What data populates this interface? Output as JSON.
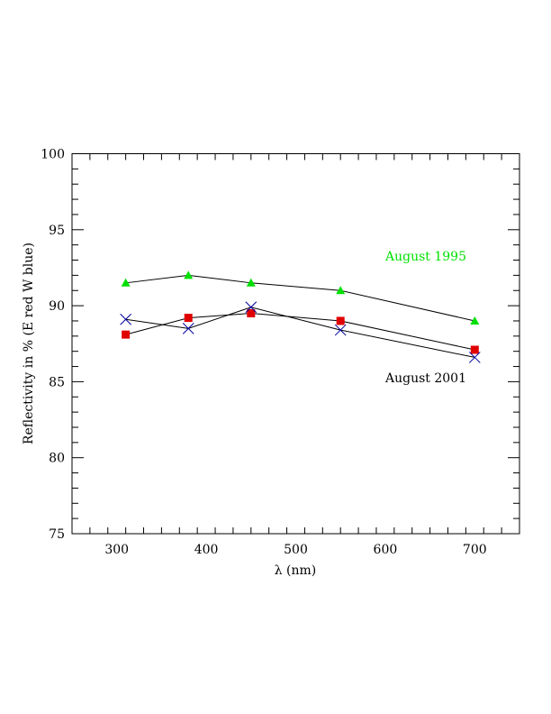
{
  "chart_data": {
    "type": "line",
    "title": "",
    "xlabel": "λ (nm)",
    "ylabel": "Reflectivity in % (E red W blue)",
    "xlim": [
      250,
      750
    ],
    "ylim": [
      75,
      100
    ],
    "x_major_ticks": [
      300,
      400,
      500,
      600,
      700
    ],
    "x_tick_labels": [
      "300",
      "400",
      "500",
      "600",
      "700"
    ],
    "x_minor_step": 20,
    "y_major_ticks": [
      75,
      80,
      85,
      90,
      95,
      100
    ],
    "y_tick_labels": [
      "75",
      "80",
      "85",
      "90",
      "95",
      "100"
    ],
    "y_minor_step": 1,
    "grid": false,
    "x": [
      310,
      380,
      450,
      550,
      700
    ],
    "series": [
      {
        "name": "August 1995",
        "marker": "triangle",
        "color": "#00e000",
        "values": [
          91.5,
          92.0,
          91.5,
          91.0,
          89.0
        ]
      },
      {
        "name": "E red",
        "marker": "square",
        "color": "#e00000",
        "values": [
          88.1,
          89.2,
          89.5,
          89.0,
          87.1
        ]
      },
      {
        "name": "W blue",
        "marker": "cross",
        "color": "#0000a0",
        "values": [
          89.1,
          88.5,
          89.9,
          88.4,
          86.6
        ]
      }
    ],
    "annotations": [
      {
        "text": "August 1995",
        "color": "#00e000",
        "series": "August 1995"
      },
      {
        "text": "August 2001",
        "color": "#000000",
        "series": "August 2001"
      }
    ]
  }
}
